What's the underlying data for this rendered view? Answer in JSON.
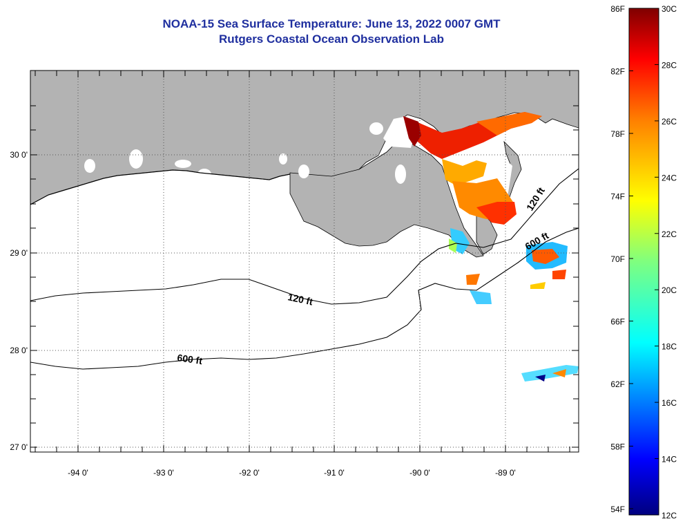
{
  "title": {
    "line1": "NOAA-15 Sea Surface Temperature:  June 13, 2022 0007 GMT",
    "line2": "Rutgers Coastal Ocean Observation Lab"
  },
  "map": {
    "longitude_labels": [
      "-94 0'",
      "-93 0'",
      "-92 0'",
      "-91 0'",
      "-90 0'",
      "-89 0'"
    ],
    "latitude_labels": [
      "30 0'",
      "29 0'",
      "28 0'",
      "27 0'"
    ],
    "contour_labels": [
      "120 ft",
      "600 ft",
      "120 ft",
      "600 ft"
    ]
  },
  "colorbar": {
    "fahrenheit_labels": [
      "86F",
      "82F",
      "78F",
      "74F",
      "70F",
      "66F",
      "62F",
      "58F",
      "54F"
    ],
    "celsius_labels": [
      "30C",
      "28C",
      "26C",
      "24C",
      "22C",
      "20C",
      "18C",
      "16C",
      "14C",
      "12C"
    ],
    "range_celsius": [
      12,
      30
    ],
    "range_fahrenheit": [
      54,
      86
    ]
  },
  "colors": {
    "title": "#1f2f9f",
    "land": "#b3b3b3",
    "no_data": "#ffffff",
    "contour": "#000000",
    "colormap": [
      "#00007f",
      "#0000ff",
      "#007fff",
      "#00ffff",
      "#7fff7f",
      "#ffff00",
      "#ff7f00",
      "#ff0000",
      "#7f0000"
    ]
  }
}
